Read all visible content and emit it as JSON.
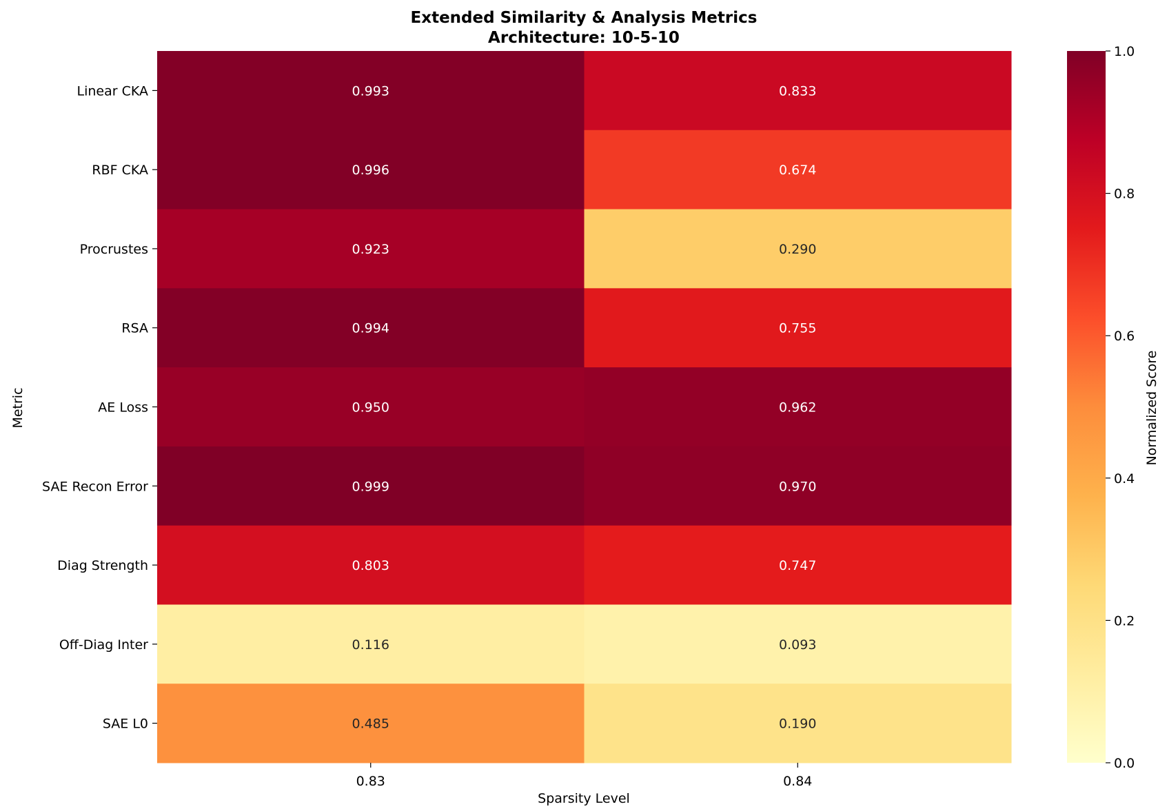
{
  "chart_data": {
    "type": "heatmap",
    "title": "Extended Similarity & Analysis Metrics",
    "subtitle": "Architecture: 10-5-10",
    "xlabel": "Sparsity Level",
    "ylabel": "Metric",
    "x_categories": [
      "0.83",
      "0.84"
    ],
    "y_categories": [
      "Linear CKA",
      "RBF CKA",
      "Procrustes",
      "RSA",
      "AE Loss",
      "SAE Recon Error",
      "Diag Strength",
      "Off-Diag Inter",
      "SAE L0"
    ],
    "values": [
      [
        0.993,
        0.833
      ],
      [
        0.996,
        0.674
      ],
      [
        0.923,
        0.29
      ],
      [
        0.994,
        0.755
      ],
      [
        0.95,
        0.962
      ],
      [
        0.999,
        0.97
      ],
      [
        0.803,
        0.747
      ],
      [
        0.116,
        0.093
      ],
      [
        0.485,
        0.19
      ]
    ],
    "value_labels": [
      [
        "0.993",
        "0.833"
      ],
      [
        "0.996",
        "0.674"
      ],
      [
        "0.923",
        "0.290"
      ],
      [
        "0.994",
        "0.755"
      ],
      [
        "0.950",
        "0.962"
      ],
      [
        "0.999",
        "0.970"
      ],
      [
        "0.803",
        "0.747"
      ],
      [
        "0.116",
        "0.093"
      ],
      [
        "0.485",
        "0.190"
      ]
    ],
    "colormap": "YlOrRd",
    "vmin": 0.0,
    "vmax": 1.0,
    "colorbar": {
      "label": "Normalized Score",
      "ticks": [
        0.0,
        0.2,
        0.4,
        0.6,
        0.8,
        1.0
      ],
      "tick_labels": [
        "0.0",
        "0.2",
        "0.4",
        "0.6",
        "0.8",
        "1.0"
      ]
    }
  }
}
